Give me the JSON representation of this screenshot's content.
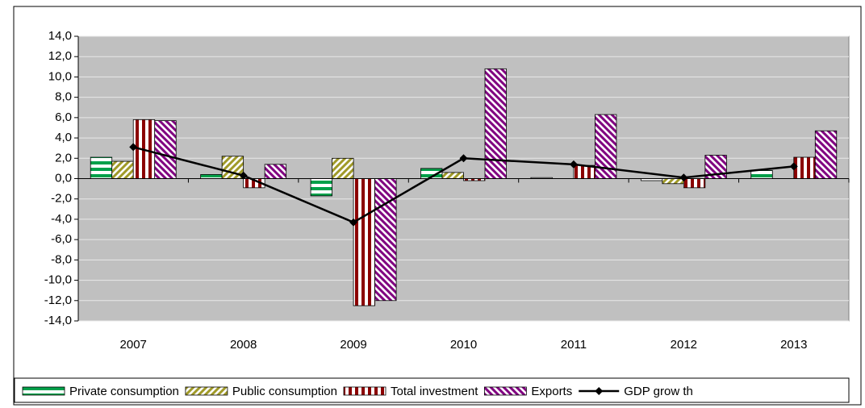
{
  "chart_data": {
    "type": "bar",
    "categories": [
      "2007",
      "2008",
      "2009",
      "2010",
      "2011",
      "2012",
      "2013"
    ],
    "series": [
      {
        "name": "Private consumption",
        "color": "#00a04a",
        "pattern": "horizontal",
        "values": [
          2.1,
          0.4,
          -1.7,
          1.0,
          0.1,
          -0.2,
          0.8
        ]
      },
      {
        "name": "Public consumption",
        "color": "#a09a28",
        "pattern": "diagonal-up",
        "values": [
          1.7,
          2.2,
          2.0,
          0.6,
          0.0,
          -0.5,
          0.0
        ]
      },
      {
        "name": "Total investment",
        "color": "#8b0000",
        "pattern": "vertical",
        "values": [
          5.8,
          -0.9,
          -12.5,
          -0.2,
          1.3,
          -0.9,
          2.1
        ]
      },
      {
        "name": "Exports",
        "color": "#800080",
        "pattern": "diagonal-down",
        "values": [
          5.7,
          1.4,
          -12.0,
          10.8,
          6.3,
          2.3,
          4.7
        ]
      },
      {
        "name": "GDP grow th",
        "color": "#000000",
        "type": "line",
        "values": [
          3.1,
          0.3,
          -4.3,
          2.0,
          1.4,
          0.1,
          1.2
        ]
      }
    ],
    "ylim": [
      -14,
      14
    ],
    "yticks": [
      {
        "value": -14,
        "label": "-14,0"
      },
      {
        "value": -12,
        "label": "-12,0"
      },
      {
        "value": -10,
        "label": "-10,0"
      },
      {
        "value": -8,
        "label": "-8,0"
      },
      {
        "value": -6,
        "label": "-6,0"
      },
      {
        "value": -4,
        "label": "-4,0"
      },
      {
        "value": -2,
        "label": "-2,0"
      },
      {
        "value": 0,
        "label": "0,0"
      },
      {
        "value": 2,
        "label": "2,0"
      },
      {
        "value": 4,
        "label": "4,0"
      },
      {
        "value": 6,
        "label": "6,0"
      },
      {
        "value": 8,
        "label": "8,0"
      },
      {
        "value": 10,
        "label": "10,0"
      },
      {
        "value": 12,
        "label": "12,0"
      },
      {
        "value": 14,
        "label": "14,0"
      }
    ],
    "grid": true,
    "legend": "bottom",
    "plot_background": "#c0c0c0"
  }
}
